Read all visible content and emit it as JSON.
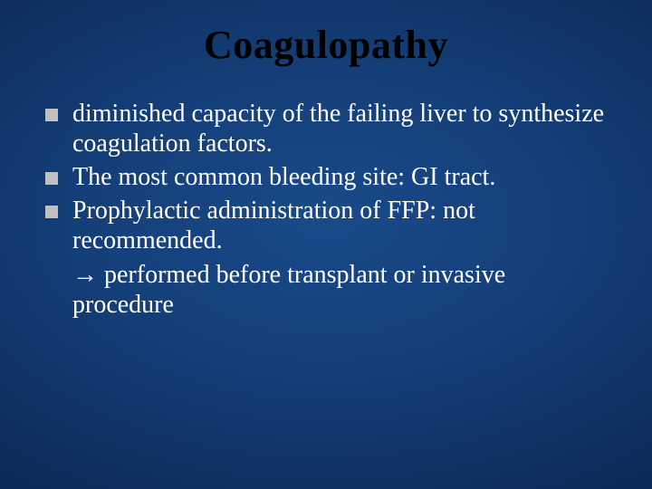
{
  "slide": {
    "title": "Coagulopathy",
    "title_color": "#000000",
    "title_fontsize": 44,
    "background_gradient": {
      "center": "#1a4a8a",
      "mid": "#143e78",
      "outer": "#0d2c5a",
      "edge": "#081f42"
    },
    "body_color": "#ffffff",
    "body_fontsize": 28,
    "bullet_color": "#c0c0c0",
    "bullet_shape": "square",
    "items": [
      {
        "text": "diminished capacity of the failing liver to synthesize coagulation factors."
      },
      {
        "text": "The most common bleeding site: GI tract."
      },
      {
        "text": "Prophylactic administration of FFP: not recommended."
      }
    ],
    "continuation": {
      "arrow": "→",
      "text": " performed before transplant or invasive procedure"
    }
  }
}
